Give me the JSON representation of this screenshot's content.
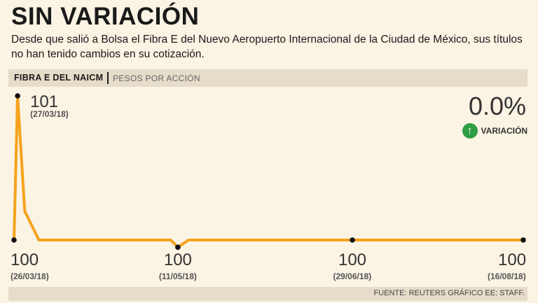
{
  "title": "SIN VARIACIÓN",
  "subtitle": "Desde que salió a Bolsa el Fibra E del Nuevo Aeropuerto Internacional de la Ciudad de México, sus títulos no han tenido cambios en su cotización.",
  "band": {
    "label": "FIBRA E DEL NAICM",
    "unit": "PESOS POR ACCIÓN"
  },
  "variation": {
    "value": "0.0%",
    "label": "VARIACIÓN",
    "icon": "arrow-up-icon",
    "color": "#2f9e44"
  },
  "source": "FUENTE: REUTERS GRÁFICO EE: STAFF.",
  "chart_data": {
    "type": "line",
    "line_color": "#f5a31d",
    "x_start": "26/03/18",
    "x_end": "16/08/18",
    "points": [
      {
        "x": "26/03/18",
        "y": 100
      },
      {
        "x": "27/03/18",
        "y": 101
      },
      {
        "x": "29/03/18",
        "y": 100.2
      },
      {
        "x": "02/04/18",
        "y": 100
      },
      {
        "x": "09/05/18",
        "y": 100
      },
      {
        "x": "11/05/18",
        "y": 99.95
      },
      {
        "x": "14/05/18",
        "y": 100
      },
      {
        "x": "29/06/18",
        "y": 100
      },
      {
        "x": "16/08/18",
        "y": 100
      }
    ],
    "labeled_points": [
      {
        "x": "26/03/18",
        "value": "100",
        "date": "(26/03/18)",
        "position": "below",
        "align": "left"
      },
      {
        "x": "27/03/18",
        "value": "101",
        "date": "(27/03/18)",
        "position": "right",
        "align": "left"
      },
      {
        "x": "11/05/18",
        "value": "100",
        "date": "(11/05/18)",
        "position": "below",
        "align": "center"
      },
      {
        "x": "29/06/18",
        "value": "100",
        "date": "(29/06/18)",
        "position": "below",
        "align": "center"
      },
      {
        "x": "16/08/18",
        "value": "100",
        "date": "(16/08/18)",
        "position": "below",
        "align": "right"
      }
    ]
  }
}
